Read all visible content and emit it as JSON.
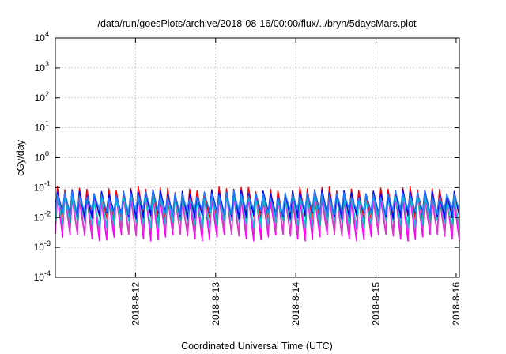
{
  "chart_data": {
    "type": "line",
    "title": "/data/run/goesPlots/archive/2018-08-16/00:00/flux/../bryn/5daysMars.plot",
    "xlabel": "Coordinated Universal Time (UTC)",
    "ylabel": "cGy/day",
    "yscale": "log",
    "ylim": [
      0.0001,
      10000
    ],
    "xlim_days": [
      11.0,
      16.04
    ],
    "x_ticks": [
      {
        "label": "2018-8-12",
        "day": 12
      },
      {
        "label": "2018-8-13",
        "day": 13
      },
      {
        "label": "2018-8-14",
        "day": 14
      },
      {
        "label": "2018-8-15",
        "day": 15
      },
      {
        "label": "2018-8-16",
        "day": 16
      }
    ],
    "y_ticks": [
      {
        "base": "10",
        "exp": "4",
        "value": 10000
      },
      {
        "base": "10",
        "exp": "3",
        "value": 1000
      },
      {
        "base": "10",
        "exp": "2",
        "value": 100
      },
      {
        "base": "10",
        "exp": "1",
        "value": 10
      },
      {
        "base": "10",
        "exp": "0",
        "value": 1
      },
      {
        "base": "10",
        "exp": "-1",
        "value": 0.1
      },
      {
        "base": "10",
        "exp": "-2",
        "value": 0.01
      },
      {
        "base": "10",
        "exp": "-3",
        "value": 0.001
      },
      {
        "base": "10",
        "exp": "-4",
        "value": 0.0001
      }
    ],
    "grid": true,
    "sawtooth_period_hours": 2.2,
    "series": [
      {
        "color": "#ff00ff",
        "peak": 0.045,
        "trough": 0.0022
      },
      {
        "color": "#d040c0",
        "peak": 0.055,
        "trough": 0.0035
      },
      {
        "color": "#ff0000",
        "peak": 0.085,
        "trough": 0.009
      },
      {
        "color": "#00c8c8",
        "peak": 0.05,
        "trough": 0.006
      },
      {
        "color": "#0000ff",
        "peak": 0.07,
        "trough": 0.012
      },
      {
        "color": "#2080ff",
        "peak": 0.06,
        "trough": 0.015
      }
    ]
  }
}
